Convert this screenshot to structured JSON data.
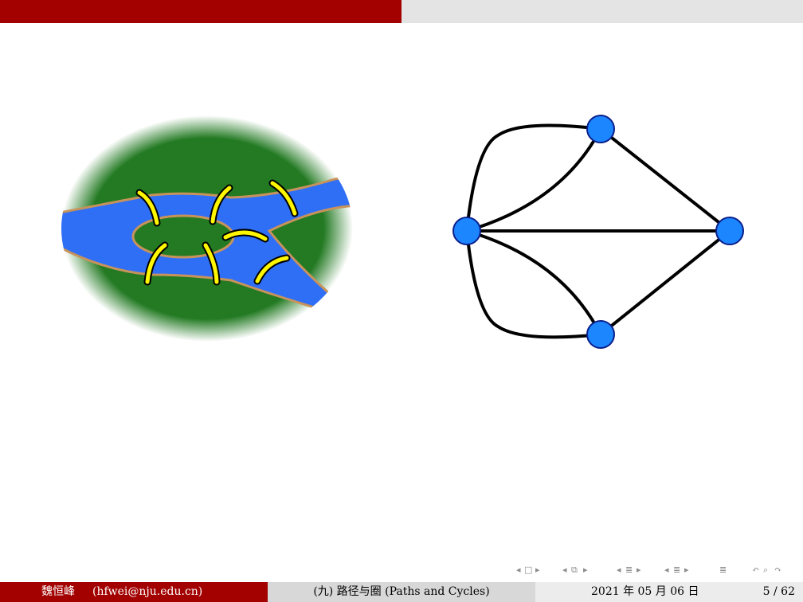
{
  "footer": {
    "author_name": "魏恒峰",
    "author_email": "(hfwei@nju.edu.cn)",
    "lecture_title": "(九) 路径与圈 (Paths and Cycles)",
    "date": "2021 年 05 月 06 日",
    "page": "5 / 62"
  },
  "nav_icons": [
    "nav-frame-prev-icon",
    "nav-frame-icon",
    "nav-frame-next-icon",
    "nav-subsection-prev-icon",
    "nav-subsection-icon",
    "nav-subsection-next-icon",
    "nav-section-prev-icon",
    "nav-section-icon",
    "nav-section-next-icon",
    "nav-appendix-icon",
    "nav-search-icon",
    "nav-back-forward-icon"
  ],
  "colors": {
    "header_left": "#a30000",
    "header_right": "#e4e4e4",
    "land": "#237a23",
    "river": "#2f6ff6",
    "bridge": "#fff700",
    "vertex": "#1c86ff",
    "edge": "#000000"
  }
}
